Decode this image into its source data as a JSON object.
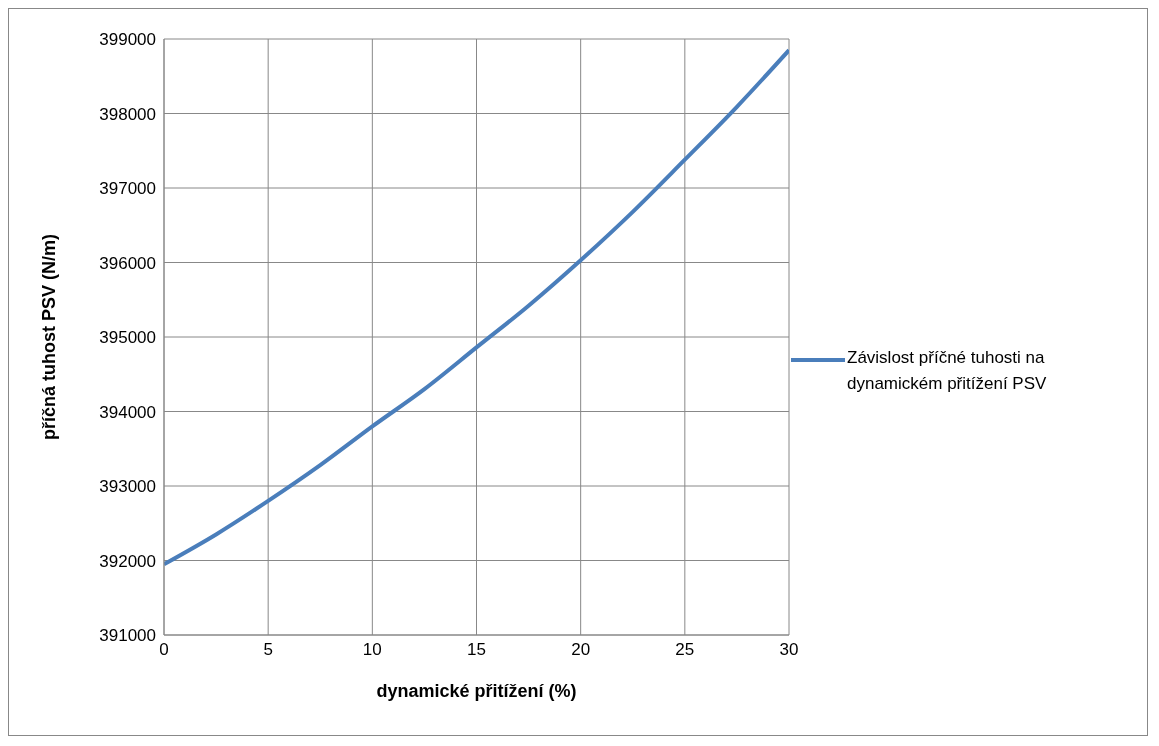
{
  "chart_data": {
    "type": "line",
    "xlabel": "dynamické přitížení (%)",
    "ylabel": "příčná tuhost PSV (N/m)",
    "x": [
      0,
      2.5,
      5,
      7.5,
      10,
      12.5,
      15,
      17.5,
      20,
      22.5,
      25,
      27.5,
      30
    ],
    "series": [
      {
        "name": "Závislost příčné tuhosti na dynamickém přitížení PSV",
        "color": "#4a7ebb",
        "values": [
          391950,
          392350,
          392800,
          393280,
          393800,
          394300,
          394860,
          395420,
          396030,
          396680,
          397380,
          398090,
          398850
        ]
      }
    ],
    "xlim": [
      0,
      30
    ],
    "xticks": [
      0,
      5,
      10,
      15,
      20,
      25,
      30
    ],
    "ylim": [
      391000,
      399000
    ],
    "yticks": [
      391000,
      392000,
      393000,
      394000,
      395000,
      396000,
      397000,
      398000,
      399000
    ],
    "grid": true,
    "legend": "right",
    "marker": "none",
    "line_style": "solid"
  }
}
